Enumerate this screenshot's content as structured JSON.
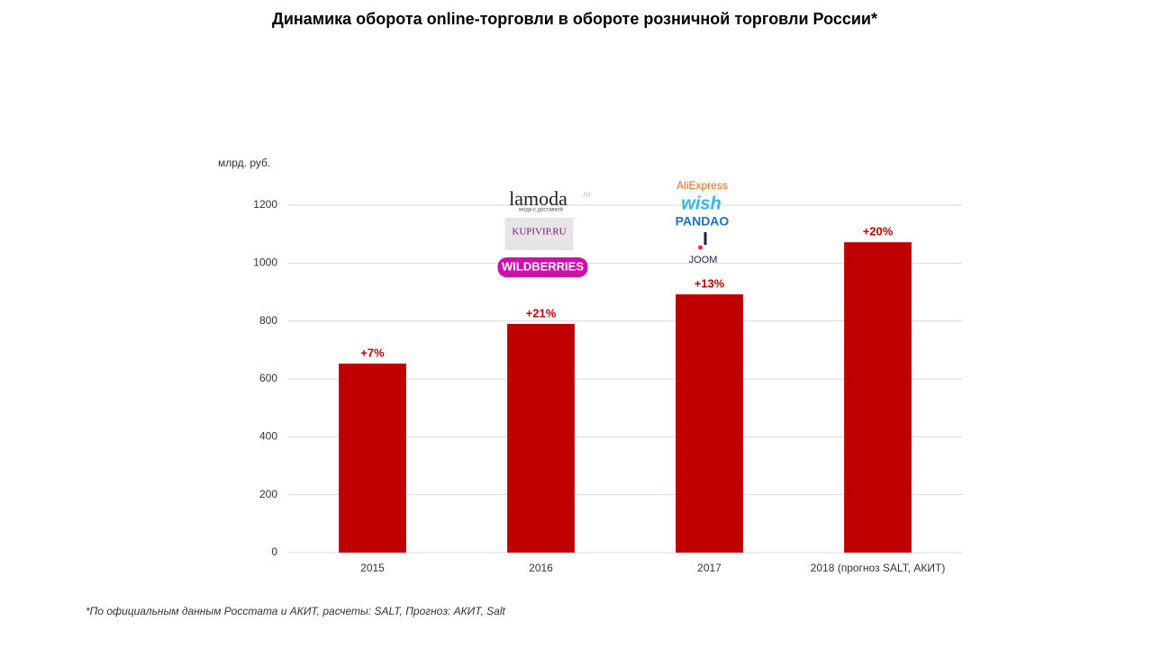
{
  "chart_data": {
    "type": "bar",
    "title": "Динамика оборота online-торговли в обороте розничной торговли России*",
    "y_axis_label": "млрд. руб.",
    "categories": [
      "2015",
      "2016",
      "2017",
      "2018 (прогноз  SALT, АКИТ)"
    ],
    "values": [
      653,
      790,
      892,
      1072
    ],
    "annotations": [
      "+7%",
      "+21%",
      "+13%",
      "+20%"
    ],
    "color": "#c00000",
    "ylim": [
      0,
      1200
    ],
    "yticks": [
      0,
      200,
      400,
      600,
      800,
      1000,
      1200
    ],
    "grid": true,
    "logos": [
      [
        "lamoda",
        ".ru",
        "мода с доставкой",
        "KUPIVIP.RU",
        "WILDBERRIES"
      ],
      [
        "AliExpress",
        "wish",
        "PANDAO",
        "JOOM"
      ]
    ],
    "footnote": "*По официальным  данным  Росстата и АКИТ, расчеты: SALT, Прогноз:  АКИТ, Salt"
  }
}
